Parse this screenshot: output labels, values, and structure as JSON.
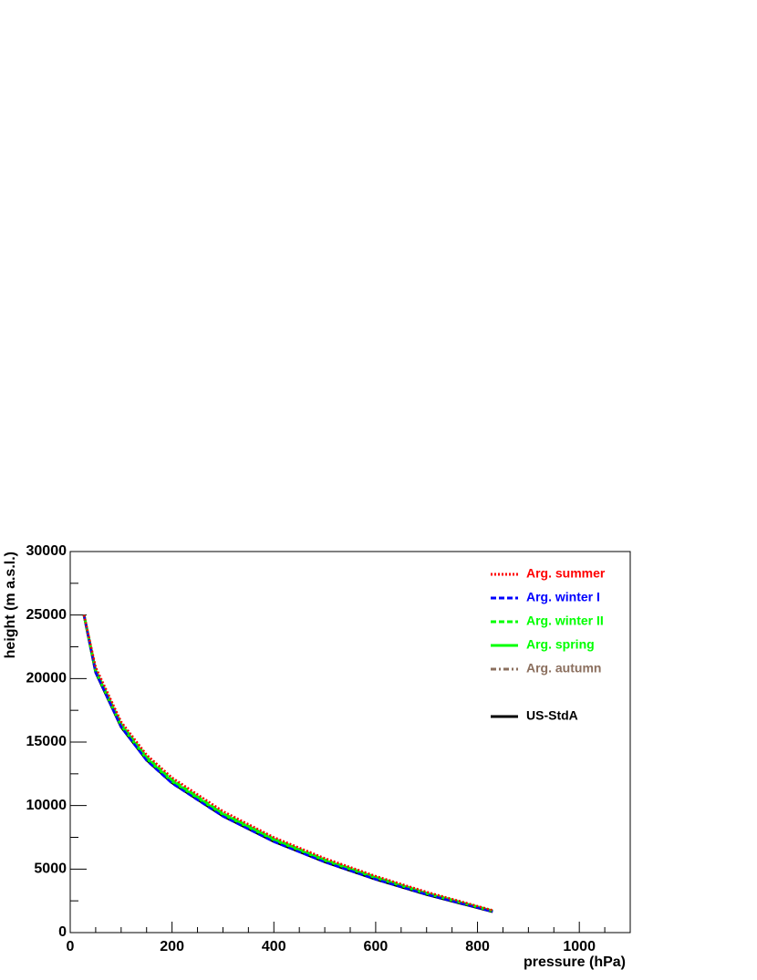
{
  "chart_data": {
    "type": "line",
    "x_label": "pressure (hPa)",
    "y_label": "height (m a.s.l.)",
    "xlim": [
      0,
      1100
    ],
    "xticks": [
      0,
      200,
      400,
      600,
      800,
      1000
    ],
    "ylim": [
      0,
      30000
    ],
    "yticks": [
      0,
      5000,
      10000,
      15000,
      20000,
      25000,
      30000
    ],
    "x": [
      27,
      50,
      100,
      150,
      200,
      300,
      400,
      500,
      600,
      700,
      830
    ],
    "series": [
      {
        "name": "Arg. summer",
        "color": "#ff0000",
        "style": "dotted",
        "values": [
          25000,
          20900,
          16600,
          14000,
          12200,
          9550,
          7500,
          5850,
          4450,
          3200,
          1750
        ]
      },
      {
        "name": "Arg. winter I",
        "color": "#0000ff",
        "style": "dashed",
        "values": [
          25000,
          20500,
          16200,
          13550,
          11750,
          9150,
          7150,
          5550,
          4200,
          3000,
          1650
        ]
      },
      {
        "name": "Arg. winter II",
        "color": "#00ff00",
        "style": "dashed",
        "values": [
          25000,
          20700,
          16450,
          13850,
          12050,
          9400,
          7400,
          5750,
          4380,
          3130,
          1720
        ]
      },
      {
        "name": "Arg. spring",
        "color": "#00ff00",
        "style": "solid",
        "values": [
          25000,
          20600,
          16300,
          13700,
          11900,
          9300,
          7300,
          5680,
          4320,
          3080,
          1700
        ]
      },
      {
        "name": "Arg. autumn",
        "color": "#8b6f5e",
        "style": "dashdot",
        "values": [
          25000,
          20650,
          16400,
          13800,
          12000,
          9380,
          7380,
          5730,
          4360,
          3110,
          1710
        ]
      },
      {
        "name": "US-StdA",
        "color": "#000000",
        "style": "solid",
        "values": [
          25000,
          20500,
          16200,
          13600,
          11800,
          9180,
          7180,
          5570,
          4200,
          3000,
          1650
        ]
      }
    ]
  }
}
